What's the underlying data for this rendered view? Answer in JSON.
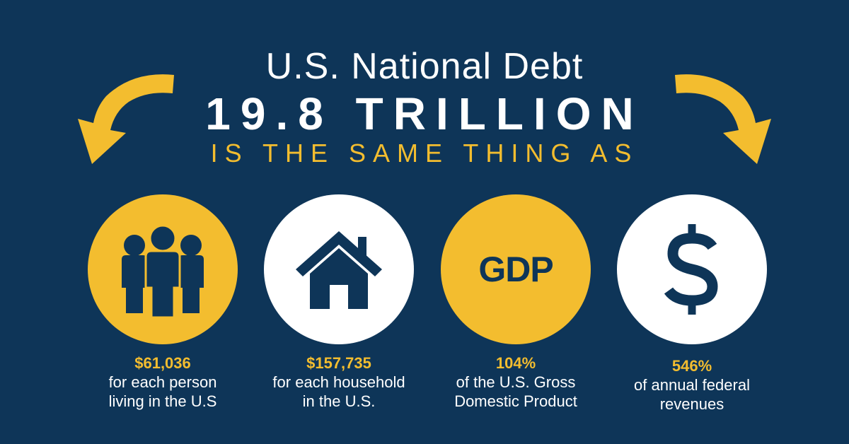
{
  "header": {
    "line1": "U.S. National Debt",
    "line2": "19.8 TRILLION",
    "line3": "IS THE SAME THING AS"
  },
  "colors": {
    "background": "#0e3558",
    "accent": "#f3bd2f",
    "white": "#ffffff"
  },
  "items": [
    {
      "icon": "people-icon",
      "value": "$61,036",
      "desc_line1": "for each person",
      "desc_line2": "living in the U.S"
    },
    {
      "icon": "house-icon",
      "value": "$157,735",
      "desc_line1": "for each household",
      "desc_line2": "in the U.S."
    },
    {
      "icon": "gdp-icon",
      "icon_text": "GDP",
      "value": "104%",
      "desc_line1": "of the U.S. Gross",
      "desc_line2": "Domestic Product"
    },
    {
      "icon": "dollar-icon",
      "value": "546%",
      "desc_line1": "of annual federal",
      "desc_line2": "revenues"
    }
  ]
}
